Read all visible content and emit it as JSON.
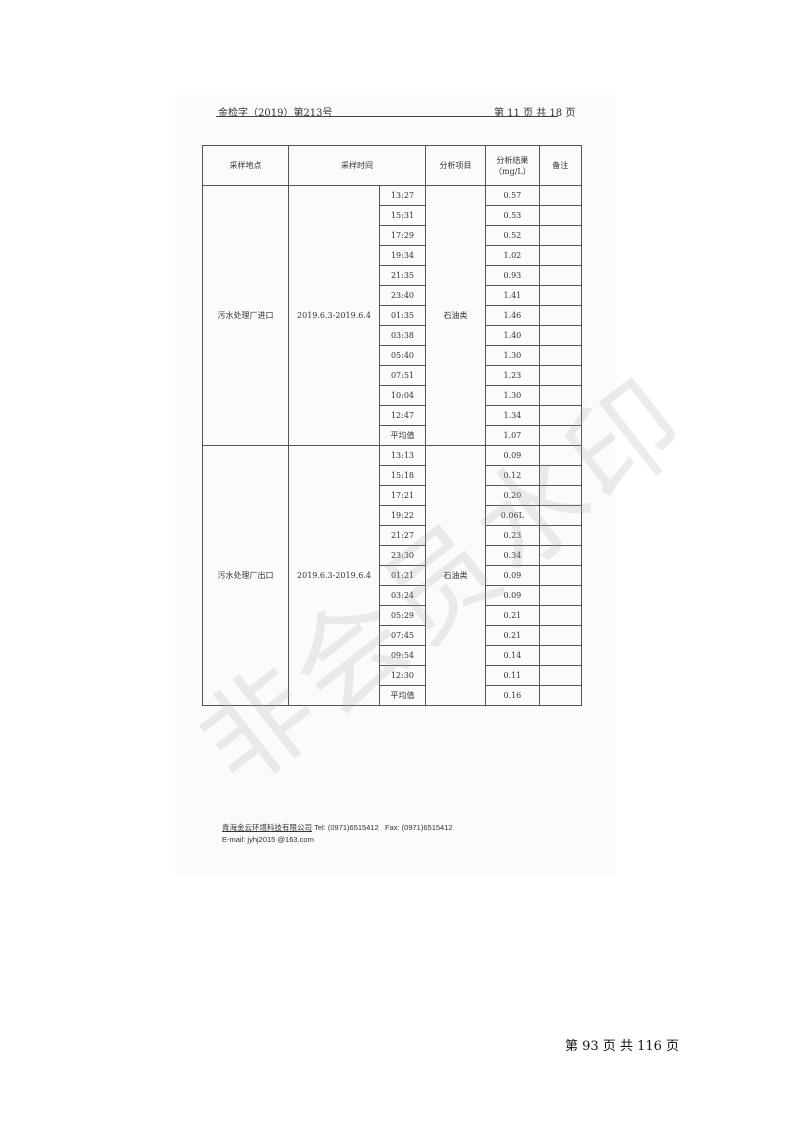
{
  "header": {
    "doc_no": "金检字（2019）第213号",
    "page": "第 11 页 共 18 页"
  },
  "table": {
    "columns": [
      "采样地点",
      "采样时间",
      "分析项目",
      "分析结果（mg/L）",
      "备注"
    ],
    "groups": [
      {
        "site": "污水处理厂进口",
        "date": "2019.6.3-2019.6.4",
        "item": "石油类",
        "rows": [
          [
            "13:27",
            "0.57"
          ],
          [
            "15:31",
            "0.53"
          ],
          [
            "17:29",
            "0.52"
          ],
          [
            "19:34",
            "1.02"
          ],
          [
            "21:35",
            "0.93"
          ],
          [
            "23:40",
            "1.41"
          ],
          [
            "01:35",
            "1.46"
          ],
          [
            "03:38",
            "1.40"
          ],
          [
            "05:40",
            "1.30"
          ],
          [
            "07:51",
            "1.23"
          ],
          [
            "10:04",
            "1.30"
          ],
          [
            "12:47",
            "1.34"
          ],
          [
            "平均值",
            "1.07"
          ]
        ]
      },
      {
        "site": "污水处理厂出口",
        "date": "2019.6.3-2019.6.4",
        "item": "石油类",
        "rows": [
          [
            "13:13",
            "0.09"
          ],
          [
            "15:18",
            "0.12"
          ],
          [
            "17:21",
            "0.20"
          ],
          [
            "19:22",
            "0.06L"
          ],
          [
            "21:27",
            "0.23"
          ],
          [
            "23:30",
            "0.34"
          ],
          [
            "01:21",
            "0.09"
          ],
          [
            "03:24",
            "0.09"
          ],
          [
            "05:29",
            "0.21"
          ],
          [
            "07:45",
            "0.21"
          ],
          [
            "09:54",
            "0.14"
          ],
          [
            "12:30",
            "0.11"
          ],
          [
            "平均值",
            "0.16"
          ]
        ]
      }
    ]
  },
  "footer": {
    "company": "青海金云环境科技有限公司",
    "tel": "Tel:  (0971)6515412",
    "fax": "Fax:  (0971)6515412",
    "email": "E-mail:  jyhj2015 @163.com"
  },
  "watermark": "非会员水印",
  "page_number": "第 93 页 共 116 页"
}
